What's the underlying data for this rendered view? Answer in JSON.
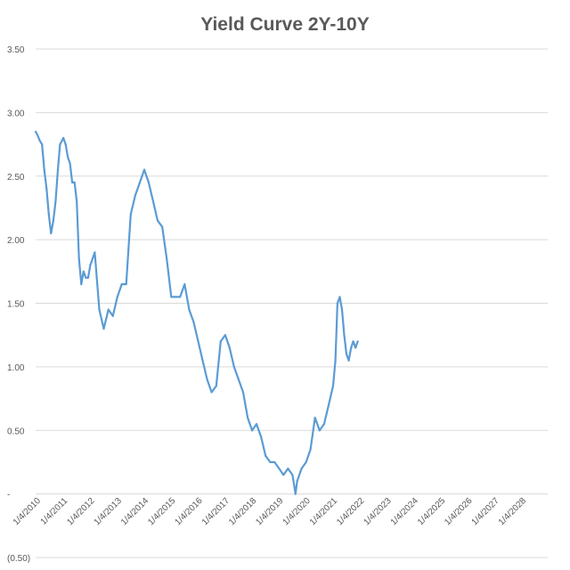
{
  "chart_data": {
    "type": "line",
    "title": "Yield Curve 2Y-10Y",
    "xlabel": "",
    "ylabel": "",
    "y_tick_labels": [
      "(0.50)",
      "-",
      "0.50",
      "1.00",
      "1.50",
      "2.00",
      "2.50",
      "3.00",
      "3.50"
    ],
    "y_tick_values": [
      -0.5,
      0,
      0.5,
      1.0,
      1.5,
      2.0,
      2.5,
      3.0,
      3.5
    ],
    "ylim": [
      -0.5,
      3.5
    ],
    "x_tick_labels": [
      "1/4/2010",
      "1/4/2011",
      "1/4/2012",
      "1/4/2013",
      "1/4/2014",
      "1/4/2015",
      "1/4/2016",
      "1/4/2017",
      "1/4/2018",
      "1/4/2019",
      "1/4/2020",
      "1/4/2021",
      "1/4/2022",
      "1/4/2023",
      "1/4/2024",
      "1/4/2025",
      "1/4/2026",
      "1/4/2027",
      "1/4/2028"
    ],
    "xlim": [
      "2010-01-04",
      "2028-12-31"
    ],
    "grid": true,
    "legend": "none",
    "series_color": "#5b9bd5",
    "series": [
      {
        "x": [
          "2010-01-04",
          "2010-02-01",
          "2010-03-01",
          "2010-04-01",
          "2010-05-01",
          "2010-06-01",
          "2010-07-01",
          "2010-08-01",
          "2010-09-01",
          "2010-10-01",
          "2010-11-01",
          "2010-12-01",
          "2011-01-15",
          "2011-02-15",
          "2011-03-15",
          "2011-04-15",
          "2011-05-15",
          "2011-06-15",
          "2011-07-15",
          "2011-08-15",
          "2011-09-15",
          "2011-10-15",
          "2011-11-15",
          "2011-12-15",
          "2012-01-15",
          "2012-03-15",
          "2012-05-15",
          "2012-07-15",
          "2012-09-15",
          "2012-11-15",
          "2013-01-15",
          "2013-03-15",
          "2013-05-15",
          "2013-07-15",
          "2013-09-15",
          "2013-11-15",
          "2014-01-15",
          "2014-03-15",
          "2014-05-15",
          "2014-07-15",
          "2014-09-15",
          "2014-11-15",
          "2015-01-15",
          "2015-03-15",
          "2015-05-15",
          "2015-07-15",
          "2015-09-15",
          "2015-11-15",
          "2016-01-15",
          "2016-03-15",
          "2016-05-15",
          "2016-07-15",
          "2016-09-15",
          "2016-11-15",
          "2017-01-15",
          "2017-03-15",
          "2017-05-15",
          "2017-07-15",
          "2017-09-15",
          "2017-11-15",
          "2018-01-15",
          "2018-03-15",
          "2018-05-15",
          "2018-07-15",
          "2018-09-15",
          "2018-11-15",
          "2019-01-15",
          "2019-03-15",
          "2019-05-15",
          "2019-07-15",
          "2019-08-25",
          "2019-09-15",
          "2019-11-15",
          "2020-01-15",
          "2020-03-15",
          "2020-05-15",
          "2020-07-15",
          "2020-09-15",
          "2020-11-15",
          "2021-01-15",
          "2021-02-15",
          "2021-03-15",
          "2021-04-15",
          "2021-05-15",
          "2021-06-15",
          "2021-07-15",
          "2021-08-15",
          "2021-09-15",
          "2021-10-15",
          "2021-11-15",
          "2021-12-15"
        ],
        "y": [
          2.85,
          2.82,
          2.78,
          2.75,
          2.55,
          2.4,
          2.2,
          2.05,
          2.15,
          2.3,
          2.55,
          2.75,
          2.8,
          2.75,
          2.65,
          2.6,
          2.45,
          2.45,
          2.3,
          1.85,
          1.65,
          1.75,
          1.7,
          1.7,
          1.8,
          1.9,
          1.45,
          1.3,
          1.45,
          1.4,
          1.55,
          1.65,
          1.65,
          2.2,
          2.35,
          2.45,
          2.55,
          2.45,
          2.3,
          2.15,
          2.1,
          1.85,
          1.55,
          1.55,
          1.55,
          1.65,
          1.45,
          1.35,
          1.2,
          1.05,
          0.9,
          0.8,
          0.85,
          1.2,
          1.25,
          1.15,
          1.0,
          0.9,
          0.8,
          0.6,
          0.5,
          0.55,
          0.45,
          0.3,
          0.25,
          0.25,
          0.2,
          0.15,
          0.2,
          0.15,
          0.0,
          0.1,
          0.2,
          0.25,
          0.35,
          0.6,
          0.5,
          0.55,
          0.7,
          0.85,
          1.05,
          1.5,
          1.55,
          1.45,
          1.25,
          1.1,
          1.05,
          1.15,
          1.2,
          1.15,
          1.2
        ]
      }
    ]
  }
}
